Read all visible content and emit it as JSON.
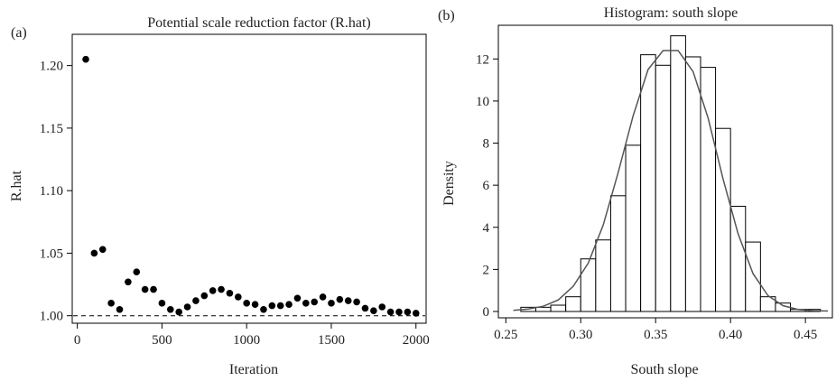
{
  "chart_data": [
    {
      "type": "scatter",
      "panel_label": "(a)",
      "title": "Potential scale reduction factor (R.hat)",
      "xlabel": "Iteration",
      "ylabel": "R.hat",
      "xlim": [
        -30,
        2060
      ],
      "ylim": [
        0.994,
        1.225
      ],
      "xticks": [
        0,
        500,
        1000,
        1500,
        2000
      ],
      "xtick_labels": [
        "0",
        "500",
        "1000",
        "1500",
        "2000"
      ],
      "yticks": [
        1.0,
        1.05,
        1.1,
        1.15,
        1.2
      ],
      "ytick_labels": [
        "1.00",
        "1.05",
        "1.10",
        "1.15",
        "1.20"
      ],
      "reference_line": {
        "y": 1.0,
        "style": "dashed"
      },
      "x": [
        50,
        100,
        150,
        200,
        250,
        300,
        350,
        400,
        450,
        500,
        550,
        600,
        650,
        700,
        750,
        800,
        850,
        900,
        950,
        1000,
        1050,
        1100,
        1150,
        1200,
        1250,
        1300,
        1350,
        1400,
        1450,
        1500,
        1550,
        1600,
        1650,
        1700,
        1750,
        1800,
        1850,
        1900,
        1950,
        2000
      ],
      "y": [
        1.205,
        1.05,
        1.053,
        1.01,
        1.005,
        1.027,
        1.035,
        1.021,
        1.021,
        1.01,
        1.005,
        1.003,
        1.007,
        1.012,
        1.016,
        1.02,
        1.021,
        1.018,
        1.015,
        1.01,
        1.009,
        1.005,
        1.008,
        1.008,
        1.009,
        1.014,
        1.01,
        1.011,
        1.015,
        1.01,
        1.013,
        1.012,
        1.011,
        1.006,
        1.004,
        1.007,
        1.003,
        1.003,
        1.003,
        1.002
      ],
      "grid": false,
      "marker_color": "#000000"
    },
    {
      "type": "histogram",
      "panel_label": "(b)",
      "title": "Histogram: south slope",
      "xlabel": "South slope",
      "ylabel": "Density",
      "xlim": [
        0.245,
        0.468
      ],
      "ylim": [
        -0.3,
        13.6
      ],
      "xticks": [
        0.25,
        0.3,
        0.35,
        0.4,
        0.45
      ],
      "xtick_labels": [
        "0.25",
        "0.30",
        "0.35",
        "0.40",
        "0.45"
      ],
      "yticks": [
        0,
        2,
        4,
        6,
        8,
        10,
        12
      ],
      "ytick_labels": [
        "0",
        "2",
        "4",
        "6",
        "8",
        "10",
        "12"
      ],
      "bin_edges": [
        0.26,
        0.27,
        0.28,
        0.29,
        0.3,
        0.31,
        0.32,
        0.33,
        0.34,
        0.35,
        0.36,
        0.37,
        0.38,
        0.39,
        0.4,
        0.41,
        0.42,
        0.43,
        0.44,
        0.45,
        0.46
      ],
      "density": [
        0.2,
        0.2,
        0.3,
        0.7,
        2.5,
        3.4,
        5.5,
        7.9,
        12.2,
        11.7,
        13.1,
        12.1,
        11.6,
        8.7,
        5.0,
        3.3,
        0.7,
        0.4,
        0.1,
        0.1
      ],
      "density_curve": {
        "x": [
          0.255,
          0.265,
          0.275,
          0.285,
          0.295,
          0.305,
          0.315,
          0.325,
          0.335,
          0.345,
          0.355,
          0.365,
          0.375,
          0.385,
          0.395,
          0.405,
          0.415,
          0.425,
          0.435,
          0.445,
          0.455,
          0.465
        ],
        "y": [
          0.05,
          0.12,
          0.25,
          0.55,
          1.2,
          2.3,
          4.1,
          6.6,
          9.3,
          11.5,
          12.4,
          12.4,
          11.4,
          9.2,
          6.3,
          3.7,
          1.8,
          0.75,
          0.28,
          0.1,
          0.04,
          0.02
        ]
      },
      "grid": false,
      "bar_color": "#ffffff",
      "bar_edge_color": "#000000",
      "curve_color": "#555555"
    }
  ]
}
